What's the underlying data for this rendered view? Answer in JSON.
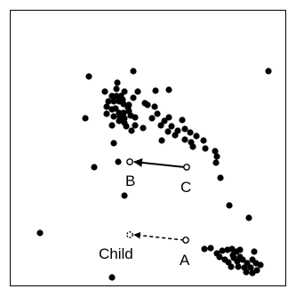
{
  "labels": {
    "b": "B",
    "c": "C",
    "a": "A",
    "child": "Child"
  },
  "colors": {
    "ink": "#000000",
    "background": "#ffffff",
    "frame": "#000000"
  },
  "point_cloud": {
    "point_count": 103
  }
}
